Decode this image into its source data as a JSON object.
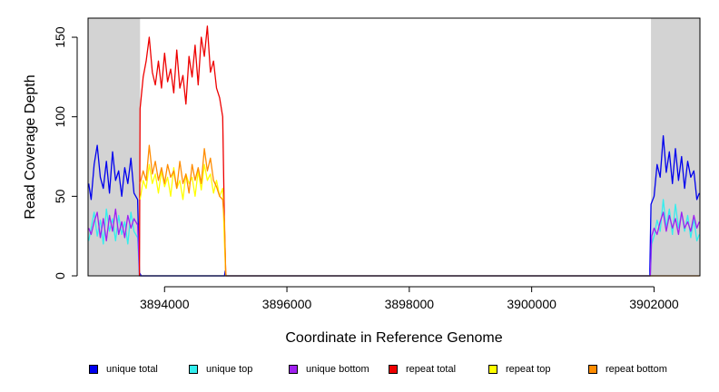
{
  "chart_data": {
    "type": "line",
    "xlabel": "Coordinate in Reference Genome",
    "ylabel": "Read Coverage Depth",
    "xlim": [
      3892750,
      3902750
    ],
    "ylim": [
      0,
      162
    ],
    "x_ticks": [
      3894000,
      3896000,
      3898000,
      3900000,
      3902000
    ],
    "y_ticks": [
      0,
      50,
      100,
      150
    ],
    "shaded_regions": [
      {
        "from": 3892750,
        "to": 3893600,
        "color": "#d3d3d3"
      },
      {
        "from": 3901950,
        "to": 3902750,
        "color": "#d3d3d3"
      }
    ],
    "legend_position": "bottom",
    "series": [
      {
        "name": "unique total",
        "color": "#0000ee",
        "points": [
          [
            3892760,
            58
          ],
          [
            3892800,
            48
          ],
          [
            3892850,
            70
          ],
          [
            3892900,
            82
          ],
          [
            3892950,
            62
          ],
          [
            3893000,
            55
          ],
          [
            3893050,
            72
          ],
          [
            3893100,
            52
          ],
          [
            3893150,
            78
          ],
          [
            3893200,
            60
          ],
          [
            3893250,
            66
          ],
          [
            3893300,
            50
          ],
          [
            3893350,
            68
          ],
          [
            3893400,
            58
          ],
          [
            3893450,
            74
          ],
          [
            3893500,
            52
          ],
          [
            3893560,
            48
          ],
          [
            3893590,
            2
          ],
          [
            3893620,
            0
          ],
          [
            3894980,
            0
          ],
          [
            3894990,
            3
          ],
          [
            3895010,
            0
          ],
          [
            3901930,
            0
          ],
          [
            3901950,
            45
          ],
          [
            3902000,
            50
          ],
          [
            3902050,
            70
          ],
          [
            3902100,
            62
          ],
          [
            3902150,
            88
          ],
          [
            3902200,
            65
          ],
          [
            3902250,
            78
          ],
          [
            3902300,
            58
          ],
          [
            3902350,
            80
          ],
          [
            3902400,
            60
          ],
          [
            3902450,
            75
          ],
          [
            3902500,
            55
          ],
          [
            3902550,
            72
          ],
          [
            3902600,
            62
          ],
          [
            3902650,
            66
          ],
          [
            3902700,
            48
          ],
          [
            3902740,
            52
          ]
        ]
      },
      {
        "name": "unique top",
        "color": "#33eeee",
        "points": [
          [
            3892760,
            22
          ],
          [
            3892800,
            30
          ],
          [
            3892850,
            40
          ],
          [
            3892900,
            25
          ],
          [
            3892950,
            35
          ],
          [
            3893000,
            20
          ],
          [
            3893050,
            42
          ],
          [
            3893100,
            28
          ],
          [
            3893150,
            36
          ],
          [
            3893200,
            22
          ],
          [
            3893250,
            38
          ],
          [
            3893300,
            26
          ],
          [
            3893350,
            34
          ],
          [
            3893400,
            20
          ],
          [
            3893450,
            40
          ],
          [
            3893500,
            28
          ],
          [
            3893560,
            24
          ],
          [
            3893590,
            0
          ],
          [
            3901940,
            0
          ],
          [
            3901960,
            20
          ],
          [
            3902000,
            25
          ],
          [
            3902050,
            35
          ],
          [
            3902100,
            28
          ],
          [
            3902150,
            48
          ],
          [
            3902200,
            30
          ],
          [
            3902250,
            42
          ],
          [
            3902300,
            26
          ],
          [
            3902350,
            45
          ],
          [
            3902400,
            30
          ],
          [
            3902450,
            40
          ],
          [
            3902500,
            28
          ],
          [
            3902550,
            38
          ],
          [
            3902600,
            24
          ],
          [
            3902650,
            36
          ],
          [
            3902700,
            22
          ],
          [
            3902740,
            26
          ]
        ]
      },
      {
        "name": "unique bottom",
        "color": "#a020f0",
        "points": [
          [
            3892760,
            30
          ],
          [
            3892800,
            26
          ],
          [
            3892850,
            34
          ],
          [
            3892900,
            40
          ],
          [
            3892950,
            24
          ],
          [
            3893000,
            36
          ],
          [
            3893050,
            22
          ],
          [
            3893100,
            38
          ],
          [
            3893150,
            28
          ],
          [
            3893200,
            42
          ],
          [
            3893250,
            26
          ],
          [
            3893300,
            34
          ],
          [
            3893350,
            24
          ],
          [
            3893400,
            38
          ],
          [
            3893450,
            30
          ],
          [
            3893500,
            36
          ],
          [
            3893560,
            32
          ],
          [
            3893590,
            0
          ],
          [
            3901940,
            0
          ],
          [
            3901960,
            25
          ],
          [
            3902000,
            30
          ],
          [
            3902050,
            26
          ],
          [
            3902100,
            34
          ],
          [
            3902150,
            40
          ],
          [
            3902200,
            28
          ],
          [
            3902250,
            38
          ],
          [
            3902300,
            30
          ],
          [
            3902350,
            36
          ],
          [
            3902400,
            26
          ],
          [
            3902450,
            40
          ],
          [
            3902500,
            30
          ],
          [
            3902550,
            34
          ],
          [
            3902600,
            28
          ],
          [
            3902650,
            38
          ],
          [
            3902700,
            30
          ],
          [
            3902740,
            34
          ]
        ]
      },
      {
        "name": "repeat total",
        "color": "#ee0000",
        "points": [
          [
            3893590,
            0
          ],
          [
            3893600,
            105
          ],
          [
            3893650,
            125
          ],
          [
            3893700,
            135
          ],
          [
            3893750,
            150
          ],
          [
            3893800,
            128
          ],
          [
            3893850,
            120
          ],
          [
            3893900,
            135
          ],
          [
            3893950,
            118
          ],
          [
            3894000,
            140
          ],
          [
            3894050,
            122
          ],
          [
            3894100,
            130
          ],
          [
            3894150,
            115
          ],
          [
            3894200,
            142
          ],
          [
            3894250,
            118
          ],
          [
            3894300,
            126
          ],
          [
            3894350,
            108
          ],
          [
            3894400,
            138
          ],
          [
            3894450,
            125
          ],
          [
            3894500,
            145
          ],
          [
            3894550,
            120
          ],
          [
            3894600,
            150
          ],
          [
            3894650,
            138
          ],
          [
            3894700,
            157
          ],
          [
            3894750,
            128
          ],
          [
            3894800,
            135
          ],
          [
            3894850,
            118
          ],
          [
            3894900,
            112
          ],
          [
            3894950,
            100
          ],
          [
            3894980,
            30
          ],
          [
            3895000,
            0
          ]
        ]
      },
      {
        "name": "repeat top",
        "color": "#ffff00",
        "points": [
          [
            3893600,
            48
          ],
          [
            3893650,
            60
          ],
          [
            3893700,
            55
          ],
          [
            3893750,
            70
          ],
          [
            3893800,
            58
          ],
          [
            3893850,
            64
          ],
          [
            3893900,
            52
          ],
          [
            3893950,
            66
          ],
          [
            3894000,
            56
          ],
          [
            3894050,
            62
          ],
          [
            3894100,
            50
          ],
          [
            3894150,
            68
          ],
          [
            3894200,
            55
          ],
          [
            3894250,
            60
          ],
          [
            3894300,
            48
          ],
          [
            3894350,
            64
          ],
          [
            3894400,
            58
          ],
          [
            3894450,
            62
          ],
          [
            3894500,
            50
          ],
          [
            3894550,
            66
          ],
          [
            3894600,
            54
          ],
          [
            3894650,
            70
          ],
          [
            3894700,
            60
          ],
          [
            3894750,
            64
          ],
          [
            3894800,
            52
          ],
          [
            3894850,
            60
          ],
          [
            3894900,
            50
          ],
          [
            3894950,
            55
          ],
          [
            3894980,
            20
          ],
          [
            3895000,
            0
          ]
        ]
      },
      {
        "name": "repeat bottom",
        "color": "#ff8c00",
        "points": [
          [
            3893600,
            58
          ],
          [
            3893650,
            66
          ],
          [
            3893700,
            60
          ],
          [
            3893750,
            82
          ],
          [
            3893800,
            64
          ],
          [
            3893850,
            72
          ],
          [
            3893900,
            60
          ],
          [
            3893950,
            68
          ],
          [
            3894000,
            58
          ],
          [
            3894050,
            70
          ],
          [
            3894100,
            62
          ],
          [
            3894150,
            66
          ],
          [
            3894200,
            55
          ],
          [
            3894250,
            72
          ],
          [
            3894300,
            58
          ],
          [
            3894350,
            64
          ],
          [
            3894400,
            52
          ],
          [
            3894450,
            70
          ],
          [
            3894500,
            60
          ],
          [
            3894550,
            68
          ],
          [
            3894600,
            58
          ],
          [
            3894650,
            80
          ],
          [
            3894700,
            66
          ],
          [
            3894750,
            74
          ],
          [
            3894800,
            60
          ],
          [
            3894850,
            56
          ],
          [
            3894900,
            50
          ],
          [
            3894950,
            48
          ],
          [
            3894980,
            34
          ],
          [
            3895000,
            0
          ],
          [
            3895010,
            0
          ],
          [
            3902740,
            0
          ]
        ]
      }
    ]
  }
}
